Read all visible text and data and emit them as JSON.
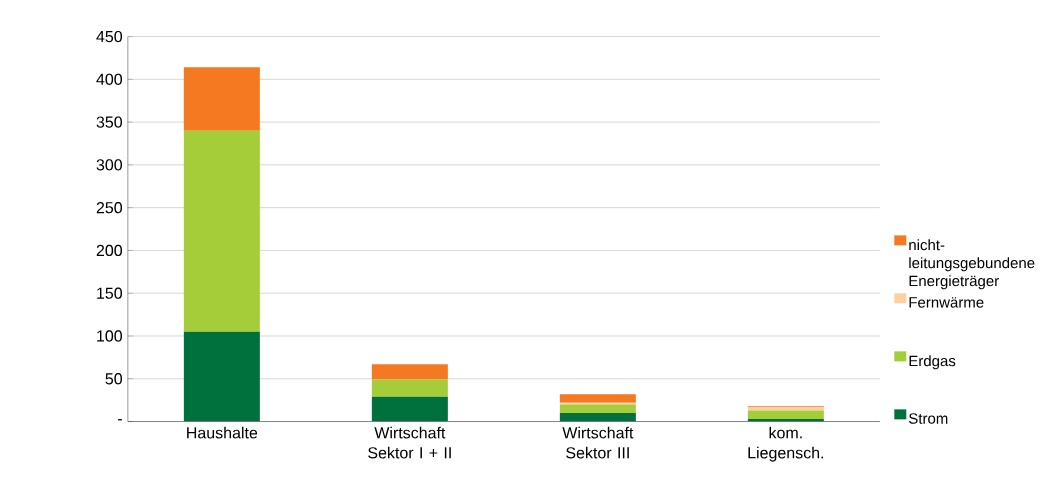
{
  "chart_data": {
    "type": "bar",
    "stacked": true,
    "categories": [
      "Haushalte",
      "Wirtschaft Sektor I + II",
      "Wirtschaft Sektor III",
      "kom. Liegensch."
    ],
    "series": [
      {
        "name": "Strom",
        "color": "#00703c",
        "values": [
          105,
          29,
          10,
          3
        ]
      },
      {
        "name": "Erdgas",
        "color": "#a5cd39",
        "values": [
          235,
          20,
          10,
          10
        ]
      },
      {
        "name": "Fernwärme",
        "color": "#fdd0a2",
        "values": [
          0,
          0,
          2,
          4
        ]
      },
      {
        "name": "nicht-leitungsgebundene Energieträger",
        "color": "#f47920",
        "values": [
          74,
          18,
          10,
          1
        ]
      }
    ],
    "ylim": [
      0,
      450
    ],
    "yticks": [
      {
        "value": 0,
        "label": "-"
      },
      50,
      100,
      150,
      200,
      250,
      300,
      350,
      400,
      450
    ],
    "grid": "y",
    "legend": "right"
  }
}
